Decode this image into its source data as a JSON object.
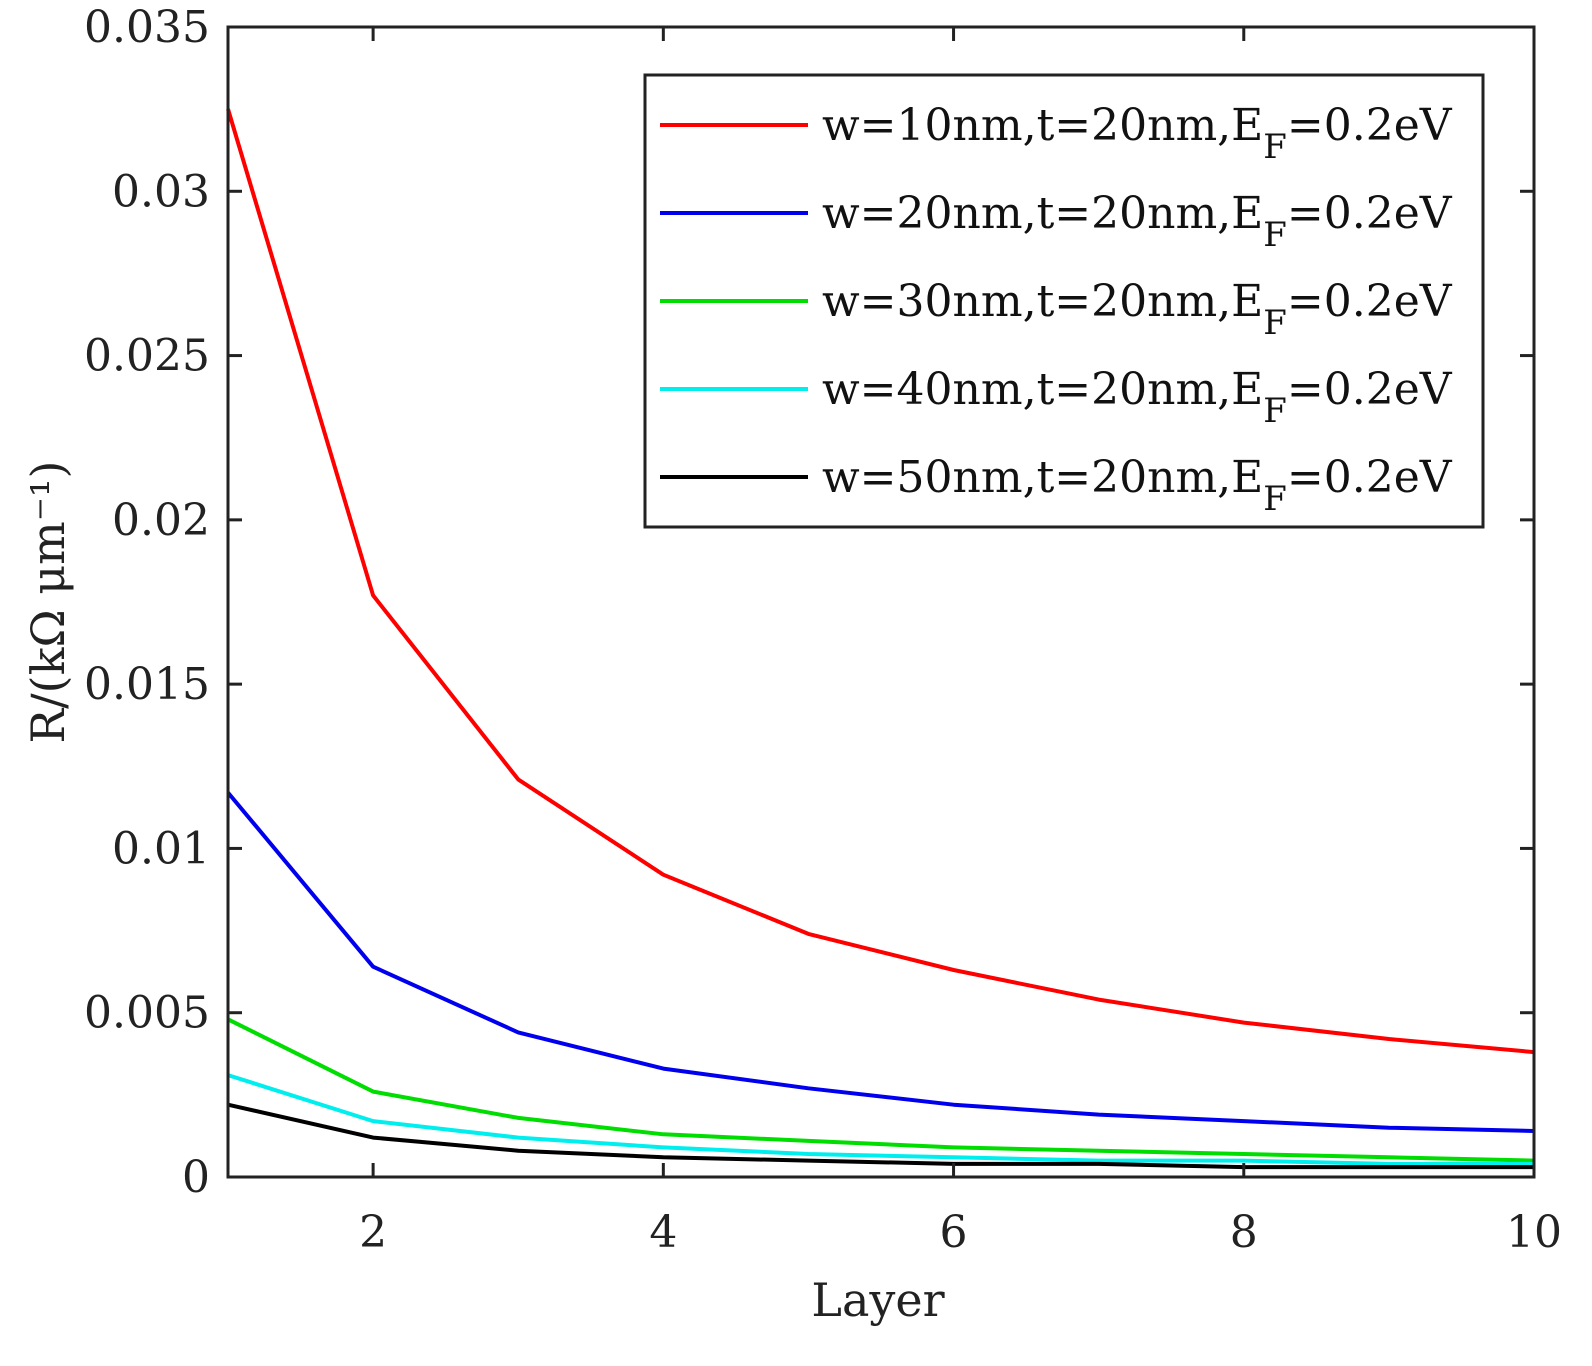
{
  "chart_data": {
    "type": "line",
    "title": "",
    "xlabel": "Layer",
    "ylabel": "R/(kΩ μm⁻¹)",
    "xlim": [
      1,
      10
    ],
    "ylim": [
      0,
      0.035
    ],
    "x_ticks": [
      2,
      4,
      6,
      8,
      10
    ],
    "x_tick_labels": [
      "2",
      "4",
      "6",
      "8",
      "10"
    ],
    "y_ticks": [
      0,
      0.005,
      0.01,
      0.015,
      0.02,
      0.025,
      0.03,
      0.035
    ],
    "y_tick_labels": [
      "0",
      "0.005",
      "0.01",
      "0.015",
      "0.02",
      "0.025",
      "0.03",
      "0.035"
    ],
    "grid": false,
    "legend_position": "top-right",
    "x": [
      1,
      2,
      3,
      4,
      5,
      6,
      7,
      8,
      9,
      10
    ],
    "series": [
      {
        "name": "w=10nm,t=20nm,EF=0.2eV",
        "legend_parts": [
          "w=10nm,t=20nm,E",
          "F",
          "=0.2eV"
        ],
        "color": "#ff0000",
        "values": [
          0.0325,
          0.0177,
          0.0121,
          0.0092,
          0.0074,
          0.0063,
          0.0054,
          0.0047,
          0.0042,
          0.0038
        ]
      },
      {
        "name": "w=20nm,t=20nm,EF=0.2eV",
        "legend_parts": [
          "w=20nm,t=20nm,E",
          "F",
          "=0.2eV"
        ],
        "color": "#0000ee",
        "values": [
          0.0117,
          0.0064,
          0.0044,
          0.0033,
          0.0027,
          0.0022,
          0.0019,
          0.0017,
          0.0015,
          0.0014
        ]
      },
      {
        "name": "w=30nm,t=20nm,EF=0.2eV",
        "legend_parts": [
          "w=30nm,t=20nm,E",
          "F",
          "=0.2eV"
        ],
        "color": "#00dd00",
        "values": [
          0.0048,
          0.0026,
          0.0018,
          0.0013,
          0.0011,
          0.0009,
          0.0008,
          0.0007,
          0.0006,
          0.0005
        ]
      },
      {
        "name": "w=40nm,t=20nm,EF=0.2eV",
        "legend_parts": [
          "w=40nm,t=20nm,E",
          "F",
          "=0.2eV"
        ],
        "color": "#00eeee",
        "values": [
          0.0031,
          0.0017,
          0.0012,
          0.0009,
          0.0007,
          0.0006,
          0.0005,
          0.0005,
          0.0004,
          0.0004
        ]
      },
      {
        "name": "w=50nm,t=20nm,EF=0.2eV",
        "legend_parts": [
          "w=50nm,t=20nm,E",
          "F",
          "=0.2eV"
        ],
        "color": "#000000",
        "values": [
          0.0022,
          0.0012,
          0.0008,
          0.0006,
          0.0005,
          0.0004,
          0.0004,
          0.0003,
          0.0003,
          0.0003
        ]
      }
    ]
  }
}
